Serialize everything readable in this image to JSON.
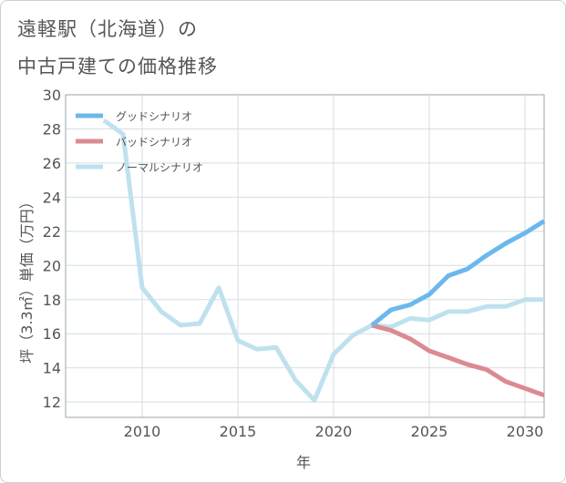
{
  "title_line1": "遠軽駅（北海道）の",
  "title_line2": "中古戸建ての価格推移",
  "chart_data": {
    "type": "line",
    "title": "遠軽駅（北海道）の中古戸建ての価格推移",
    "xlabel": "年",
    "ylabel": "坪（3.3㎡）単価（万円）",
    "xlim": [
      2006,
      2031
    ],
    "ylim": [
      11.1,
      30
    ],
    "x_ticks": [
      2010,
      2015,
      2020,
      2025,
      2030
    ],
    "y_ticks": [
      12,
      14,
      16,
      18,
      20,
      22,
      24,
      26,
      28,
      30
    ],
    "legend_position": "top-left",
    "series": [
      {
        "name": "グッドシナリオ",
        "color": "#6cb8ec",
        "x": [
          2022,
          2023,
          2024,
          2025,
          2026,
          2027,
          2028,
          2029,
          2030,
          2031
        ],
        "values": [
          16.5,
          17.4,
          17.7,
          18.3,
          19.4,
          19.8,
          20.6,
          21.3,
          21.9,
          22.6
        ]
      },
      {
        "name": "バッドシナリオ",
        "color": "#dc8a92",
        "x": [
          2022,
          2023,
          2024,
          2025,
          2026,
          2027,
          2028,
          2029,
          2030,
          2031
        ],
        "values": [
          16.5,
          16.2,
          15.7,
          15.0,
          14.6,
          14.2,
          13.9,
          13.2,
          12.8,
          12.4
        ]
      },
      {
        "name": "ノーマルシナリオ",
        "color": "#bfe1ee",
        "x": [
          2008,
          2009,
          2010,
          2011,
          2012,
          2013,
          2014,
          2015,
          2016,
          2017,
          2018,
          2019,
          2020,
          2021,
          2022,
          2023,
          2024,
          2025,
          2026,
          2027,
          2028,
          2029,
          2030,
          2031
        ],
        "values": [
          28.5,
          27.7,
          18.7,
          17.3,
          16.5,
          16.6,
          18.7,
          15.6,
          15.1,
          15.2,
          13.3,
          12.1,
          14.8,
          15.9,
          16.5,
          16.4,
          16.9,
          16.8,
          17.3,
          17.3,
          17.6,
          17.6,
          18.0,
          18.0
        ]
      }
    ]
  }
}
